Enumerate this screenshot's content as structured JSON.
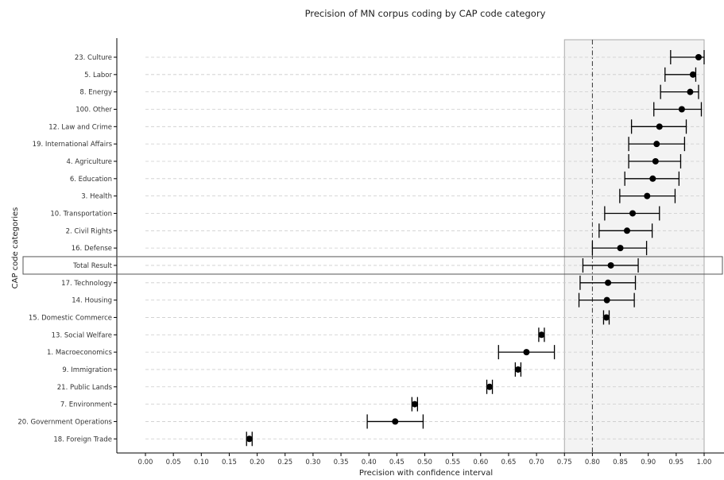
{
  "chart_data": {
    "type": "errorbar",
    "title": "Precision of MN corpus coding by CAP code category",
    "xlabel": "Precision with confidence interval",
    "ylabel": "CAP code categories",
    "xlim": [
      0.0,
      1.0
    ],
    "x_ticks": [
      "0.00",
      "0.05",
      "0.10",
      "0.15",
      "0.20",
      "0.25",
      "0.30",
      "0.35",
      "0.40",
      "0.45",
      "0.50",
      "0.55",
      "0.60",
      "0.65",
      "0.70",
      "0.75",
      "0.80",
      "0.85",
      "0.90",
      "0.95",
      "1.00"
    ],
    "threshold": 0.8,
    "shaded_range": [
      0.75,
      1.0
    ],
    "highlighted_category": "Total Result",
    "grid": "horizontal dashed",
    "categories": [
      {
        "label": "23. Culture",
        "value": 0.99,
        "lower": 0.94,
        "upper": 1.0
      },
      {
        "label": "5. Labor",
        "value": 0.98,
        "lower": 0.93,
        "upper": 0.985
      },
      {
        "label": "8. Energy",
        "value": 0.975,
        "lower": 0.922,
        "upper": 0.99
      },
      {
        "label": "100. Other",
        "value": 0.96,
        "lower": 0.91,
        "upper": 0.995
      },
      {
        "label": "12. Law and Crime",
        "value": 0.92,
        "lower": 0.87,
        "upper": 0.968
      },
      {
        "label": "19. International Affairs",
        "value": 0.915,
        "lower": 0.865,
        "upper": 0.965
      },
      {
        "label": "4. Agriculture",
        "value": 0.913,
        "lower": 0.865,
        "upper": 0.958
      },
      {
        "label": "6. Education",
        "value": 0.908,
        "lower": 0.858,
        "upper": 0.955
      },
      {
        "label": "3. Health",
        "value": 0.898,
        "lower": 0.849,
        "upper": 0.948
      },
      {
        "label": "10. Transportation",
        "value": 0.872,
        "lower": 0.822,
        "upper": 0.92
      },
      {
        "label": "2. Civil Rights",
        "value": 0.862,
        "lower": 0.812,
        "upper": 0.907
      },
      {
        "label": "16. Defense",
        "value": 0.85,
        "lower": 0.8,
        "upper": 0.897
      },
      {
        "label": "Total Result",
        "value": 0.833,
        "lower": 0.783,
        "upper": 0.882
      },
      {
        "label": "17. Technology",
        "value": 0.828,
        "lower": 0.778,
        "upper": 0.877
      },
      {
        "label": "14. Housing",
        "value": 0.826,
        "lower": 0.776,
        "upper": 0.875
      },
      {
        "label": "15. Domestic Commerce",
        "value": 0.825,
        "lower": 0.82,
        "upper": 0.83
      },
      {
        "label": "13. Social Welfare",
        "value": 0.709,
        "lower": 0.704,
        "upper": 0.714
      },
      {
        "label": "1. Macroeconomics",
        "value": 0.682,
        "lower": 0.632,
        "upper": 0.732
      },
      {
        "label": "9. Immigration",
        "value": 0.667,
        "lower": 0.662,
        "upper": 0.672
      },
      {
        "label": "21. Public Lands",
        "value": 0.616,
        "lower": 0.611,
        "upper": 0.621
      },
      {
        "label": "7. Environment",
        "value": 0.482,
        "lower": 0.477,
        "upper": 0.487
      },
      {
        "label": "20. Government Operations",
        "value": 0.447,
        "lower": 0.397,
        "upper": 0.497
      },
      {
        "label": "18. Foreign Trade",
        "value": 0.186,
        "lower": 0.181,
        "upper": 0.191
      }
    ]
  }
}
